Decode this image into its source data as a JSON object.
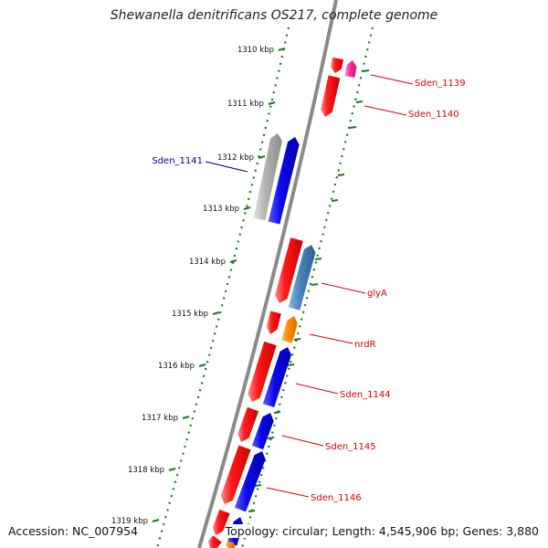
{
  "title": "Shewanella denitrificans OS217, complete genome",
  "accession": "Accession: NC_007954",
  "summary": "Topology: circular; Length: 4,545,906 bp; Genes: 3,880",
  "ticks": [
    "1310 kbp",
    "1311 kbp",
    "1312 kbp",
    "1313 kbp",
    "1314 kbp",
    "1315 kbp",
    "1316 kbp",
    "1317 kbp",
    "1318 kbp",
    "1319 kbp"
  ],
  "gene_labels": [
    {
      "text": "Sden_1139",
      "strand": "forward",
      "color": "#d40000"
    },
    {
      "text": "Sden_1140",
      "strand": "forward",
      "color": "#d40000"
    },
    {
      "text": "Sden_1141",
      "strand": "reverse",
      "color": "#00008b"
    },
    {
      "text": "glyA",
      "strand": "forward",
      "color": "#d40000"
    },
    {
      "text": "nrdR",
      "strand": "forward",
      "color": "#d40000"
    },
    {
      "text": "Sden_1144",
      "strand": "forward",
      "color": "#d40000"
    },
    {
      "text": "Sden_1145",
      "strand": "forward",
      "color": "#d40000"
    },
    {
      "text": "Sden_1146",
      "strand": "forward",
      "color": "#d40000"
    }
  ],
  "colors": {
    "cds_red": "#ee1111",
    "cds_blue": "#0a0aee",
    "cds_steel": "#4a86c0",
    "cds_orange": "#ff8c00",
    "cds_pink": "#ff3399",
    "cds_grey": "#aaaaaa",
    "backbone": "#8a8a8a",
    "tick_green": "#1a7a1a"
  }
}
